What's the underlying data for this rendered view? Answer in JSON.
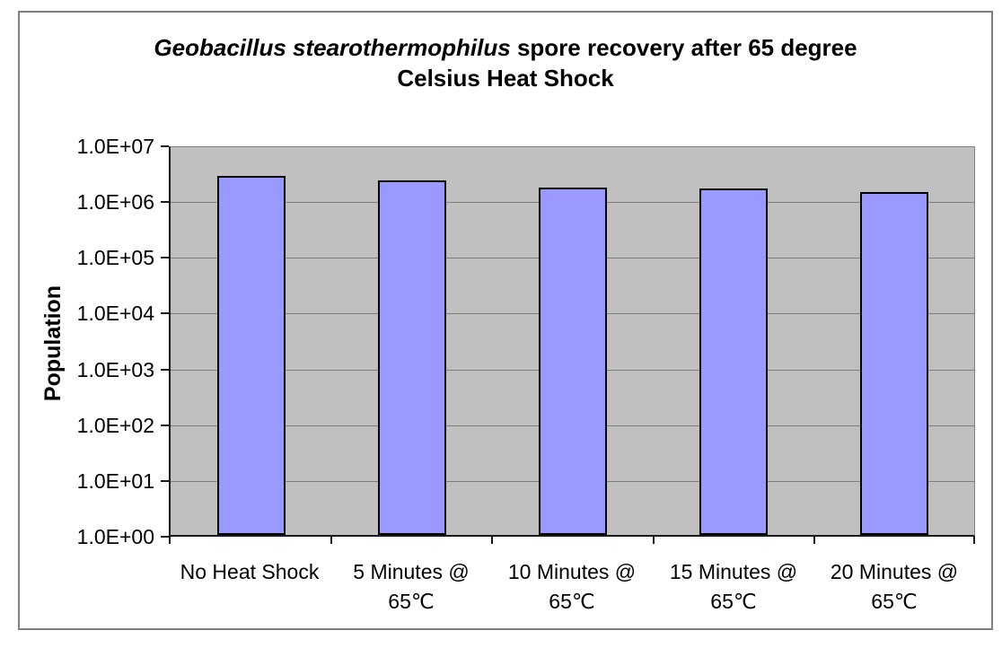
{
  "window": {
    "background_color": "#FFFFFF",
    "frame_border_color": "#808080"
  },
  "title": {
    "line1_italic": "Geobacillus stearothermophilus",
    "line1_rest": " spore recovery after 65 degree",
    "line2": "Celsius Heat Shock"
  },
  "chart_data": {
    "type": "bar",
    "title": "Geobacillus stearothermophilus spore recovery after 65 degree Celsius Heat Shock",
    "xlabel": "",
    "ylabel": "Population",
    "y_scale": "log",
    "ylim": [
      1,
      10000000
    ],
    "y_tick_labels_top_to_bottom": [
      "1.0E+07",
      "1.0E+06",
      "1.0E+05",
      "1.0E+04",
      "1.0E+03",
      "1.0E+02",
      "1.0E+01",
      "1.0E+00"
    ],
    "categories": [
      "No Heat Shock",
      "5 Minutes @ 65℃",
      "10 Minutes @ 65℃",
      "15 Minutes @ 65℃",
      "20 Minutes @ 65℃"
    ],
    "category_label_lines": [
      [
        "No Heat Shock"
      ],
      [
        "5 Minutes @",
        "65℃"
      ],
      [
        "10 Minutes @",
        "65℃"
      ],
      [
        "15 Minutes @",
        "65℃"
      ],
      [
        "20 Minutes @",
        "65℃"
      ]
    ],
    "values": [
      2700000,
      2300000,
      1700000,
      1600000,
      1400000
    ],
    "grid": true,
    "legend": "none",
    "colors": {
      "bar_fill": "#9999FF",
      "bar_border": "#000000",
      "plot_background": "#C0C0C0",
      "gridline": "#7D7D7D",
      "axis_line": "#1A1A1A"
    }
  }
}
